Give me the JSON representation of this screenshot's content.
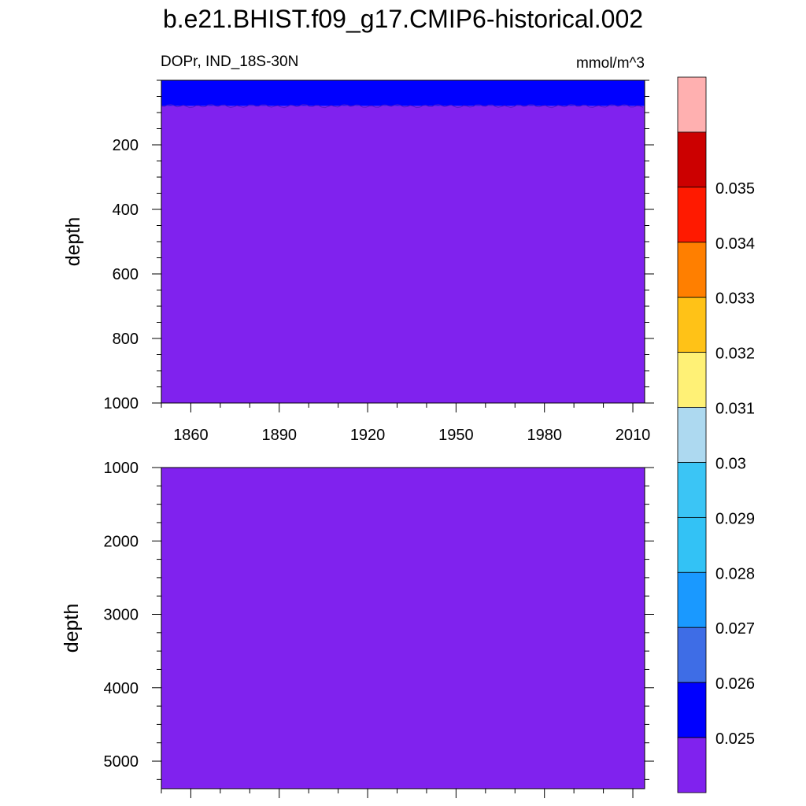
{
  "chart_data": {
    "type": "heatmap",
    "title": "b.e21.BHIST.f09_g17.CMIP6-historical.002",
    "left_subtitle": "DOPr, IND_18S-30N",
    "right_subtitle": "mmol/m^3",
    "x": {
      "range": [
        1850,
        2014
      ],
      "ticks": [
        1860,
        1890,
        1920,
        1950,
        1980,
        2010
      ]
    },
    "panels": [
      {
        "ylabel": "depth",
        "ylim": [
          0,
          1000
        ],
        "inverted": true,
        "yticks": [
          200,
          400,
          600,
          800,
          1000
        ],
        "data_top_depth": 5,
        "layers": [
          {
            "from_depth": 5,
            "to_depth": 80,
            "color": "#0000ff",
            "range_label": "0.025-0.026"
          },
          {
            "from_depth": 80,
            "to_depth": 1000,
            "color": "#8022ee",
            "range_label": "<0.025"
          }
        ]
      },
      {
        "ylabel": "depth",
        "ylim": [
          1000,
          5375
        ],
        "inverted": true,
        "yticks": [
          1000,
          2000,
          3000,
          4000,
          5000
        ],
        "layers": [
          {
            "from_depth": 1000,
            "to_depth": 5375,
            "color": "#8022ee",
            "range_label": "<0.025"
          }
        ]
      }
    ],
    "colorbar": {
      "levels": [
        "0.025",
        "0.026",
        "0.027",
        "0.028",
        "0.029",
        "0.03",
        "0.031",
        "0.032",
        "0.033",
        "0.034",
        "0.035"
      ],
      "colors": [
        "#8022ee",
        "#0000ff",
        "#3e6de6",
        "#1a99ff",
        "#33c2f5",
        "#3bc5f5",
        "#add9f0",
        "#fff176",
        "#ffc217",
        "#ff7f00",
        "#ff1a00",
        "#cc0000",
        "#ffb0b0"
      ]
    }
  }
}
